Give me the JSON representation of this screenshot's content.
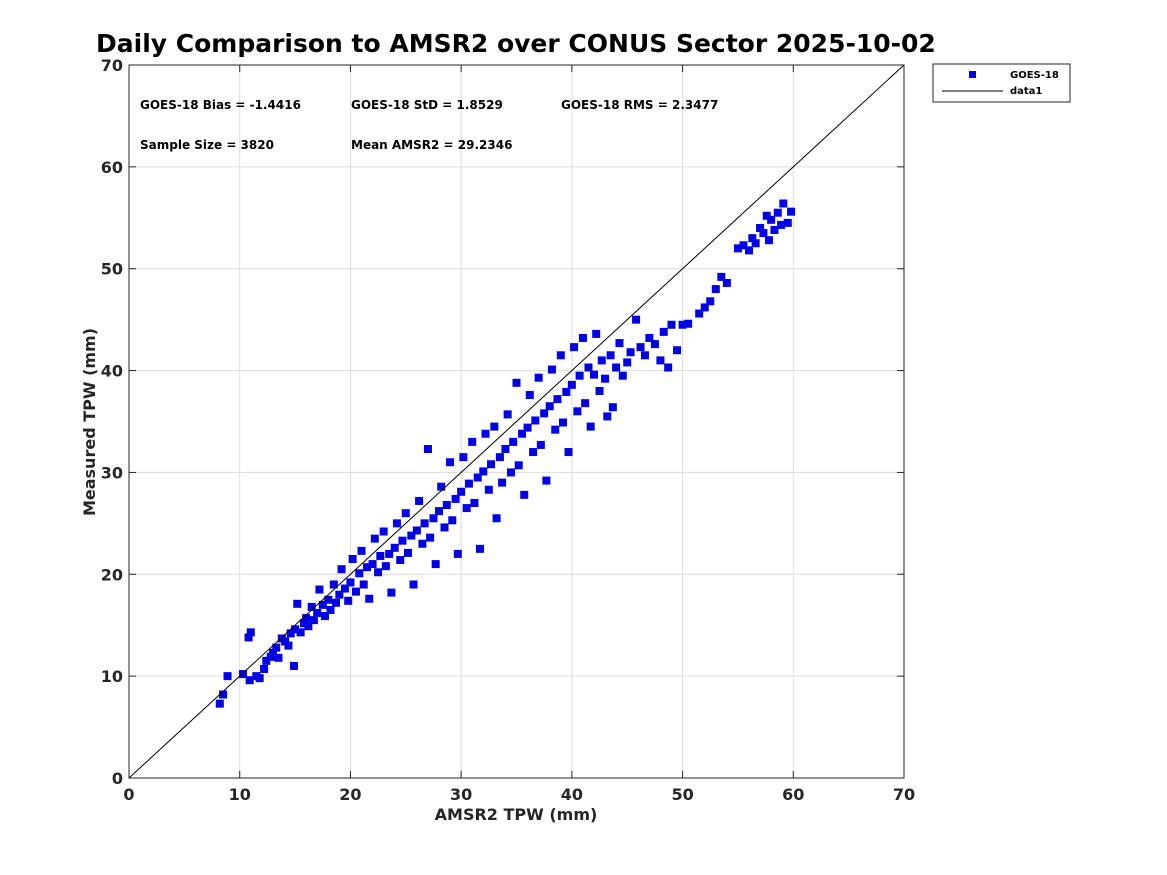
{
  "chart_data": {
    "type": "scatter",
    "title": "Daily Comparison to AMSR2 over CONUS Sector 2025-10-02",
    "xlabel": "AMSR2 TPW (mm)",
    "ylabel": "Measured TPW (mm)",
    "xlim": [
      0,
      70
    ],
    "ylim": [
      0,
      70
    ],
    "xticks": [
      "0",
      "10",
      "20",
      "30",
      "40",
      "50",
      "60",
      "70"
    ],
    "yticks": [
      "0",
      "10",
      "20",
      "30",
      "40",
      "50",
      "60",
      "70"
    ],
    "grid": true,
    "legend_position": "outside-top-right",
    "colors": {
      "series": "#0000e6",
      "reference": "#000000",
      "grid": "#dcdcdc"
    },
    "annotations": [
      "GOES-18 Bias = -1.4416",
      "GOES-18 StD = 1.8529",
      "GOES-18 RMS = 2.3477",
      "Sample Size = 3820",
      "Mean AMSR2 = 29.2346"
    ],
    "stats": {
      "bias": -1.4416,
      "std": 1.8529,
      "rms": 2.3477,
      "sample_size": 3820,
      "mean_amsr2": 29.2346
    },
    "series": [
      {
        "name": "GOES-18",
        "marker": "square",
        "points": [
          [
            8.2,
            7.3
          ],
          [
            8.5,
            8.2
          ],
          [
            8.9,
            10.0
          ],
          [
            10.3,
            10.2
          ],
          [
            10.8,
            13.8
          ],
          [
            11.0,
            14.3
          ],
          [
            10.9,
            9.6
          ],
          [
            11.5,
            10.0
          ],
          [
            11.8,
            9.8
          ],
          [
            12.2,
            10.7
          ],
          [
            12.4,
            11.5
          ],
          [
            12.8,
            11.9
          ],
          [
            13.0,
            12.3
          ],
          [
            13.3,
            12.8
          ],
          [
            13.5,
            11.8
          ],
          [
            13.8,
            13.7
          ],
          [
            14.1,
            13.4
          ],
          [
            14.4,
            13.0
          ],
          [
            14.6,
            14.2
          ],
          [
            14.9,
            11.0
          ],
          [
            15.0,
            14.6
          ],
          [
            15.2,
            17.1
          ],
          [
            15.5,
            14.3
          ],
          [
            15.8,
            15.2
          ],
          [
            16.0,
            15.7
          ],
          [
            16.2,
            14.9
          ],
          [
            16.5,
            16.8
          ],
          [
            16.7,
            15.5
          ],
          [
            17.0,
            16.2
          ],
          [
            17.2,
            18.5
          ],
          [
            17.5,
            17.0
          ],
          [
            17.7,
            15.9
          ],
          [
            18.0,
            17.5
          ],
          [
            18.2,
            16.5
          ],
          [
            18.5,
            19.0
          ],
          [
            18.7,
            17.2
          ],
          [
            19.0,
            18.0
          ],
          [
            19.2,
            20.5
          ],
          [
            19.5,
            18.6
          ],
          [
            19.8,
            17.4
          ],
          [
            20.0,
            19.2
          ],
          [
            20.2,
            21.5
          ],
          [
            20.5,
            18.3
          ],
          [
            20.8,
            20.1
          ],
          [
            21.0,
            22.3
          ],
          [
            21.2,
            19.0
          ],
          [
            21.5,
            20.7
          ],
          [
            21.7,
            17.6
          ],
          [
            22.0,
            21.0
          ],
          [
            22.2,
            23.5
          ],
          [
            22.5,
            20.2
          ],
          [
            22.7,
            21.8
          ],
          [
            23.0,
            24.2
          ],
          [
            23.2,
            20.8
          ],
          [
            23.5,
            22.0
          ],
          [
            23.7,
            18.2
          ],
          [
            24.0,
            22.6
          ],
          [
            24.2,
            25.0
          ],
          [
            24.5,
            21.4
          ],
          [
            24.7,
            23.3
          ],
          [
            25.0,
            26.0
          ],
          [
            25.2,
            22.1
          ],
          [
            25.5,
            23.8
          ],
          [
            25.7,
            19.0
          ],
          [
            26.0,
            24.3
          ],
          [
            26.2,
            27.2
          ],
          [
            26.5,
            23.0
          ],
          [
            26.7,
            25.0
          ],
          [
            27.0,
            32.3
          ],
          [
            27.2,
            23.6
          ],
          [
            27.5,
            25.5
          ],
          [
            27.7,
            21.0
          ],
          [
            28.0,
            26.2
          ],
          [
            28.2,
            28.6
          ],
          [
            28.5,
            24.6
          ],
          [
            28.7,
            26.8
          ],
          [
            29.0,
            31.0
          ],
          [
            29.2,
            25.3
          ],
          [
            29.5,
            27.4
          ],
          [
            29.7,
            22.0
          ],
          [
            30.0,
            28.1
          ],
          [
            30.2,
            31.5
          ],
          [
            30.5,
            26.5
          ],
          [
            30.7,
            28.9
          ],
          [
            31.0,
            33.0
          ],
          [
            31.2,
            27.0
          ],
          [
            31.5,
            29.5
          ],
          [
            31.7,
            22.5
          ],
          [
            32.0,
            30.1
          ],
          [
            32.2,
            33.8
          ],
          [
            32.5,
            28.3
          ],
          [
            32.7,
            30.8
          ],
          [
            33.0,
            34.5
          ],
          [
            33.2,
            25.5
          ],
          [
            33.5,
            31.5
          ],
          [
            33.7,
            29.0
          ],
          [
            34.0,
            32.3
          ],
          [
            34.2,
            35.7
          ],
          [
            34.5,
            30.0
          ],
          [
            34.7,
            33.0
          ],
          [
            35.0,
            38.8
          ],
          [
            35.2,
            30.7
          ],
          [
            35.5,
            33.8
          ],
          [
            35.7,
            27.8
          ],
          [
            36.0,
            34.4
          ],
          [
            36.2,
            37.6
          ],
          [
            36.5,
            32.0
          ],
          [
            36.7,
            35.1
          ],
          [
            37.0,
            39.3
          ],
          [
            37.2,
            32.7
          ],
          [
            37.5,
            35.8
          ],
          [
            37.7,
            29.2
          ],
          [
            38.0,
            36.5
          ],
          [
            38.2,
            40.1
          ],
          [
            38.5,
            34.2
          ],
          [
            38.7,
            37.2
          ],
          [
            39.0,
            41.5
          ],
          [
            39.2,
            34.9
          ],
          [
            39.5,
            37.9
          ],
          [
            39.7,
            32.0
          ],
          [
            40.0,
            38.6
          ],
          [
            40.2,
            42.3
          ],
          [
            40.5,
            36.0
          ],
          [
            40.7,
            39.5
          ],
          [
            41.0,
            43.2
          ],
          [
            41.2,
            36.8
          ],
          [
            41.5,
            40.3
          ],
          [
            41.7,
            34.5
          ],
          [
            42.0,
            39.6
          ],
          [
            42.2,
            43.6
          ],
          [
            42.5,
            38.0
          ],
          [
            42.7,
            41.0
          ],
          [
            43.0,
            39.2
          ],
          [
            43.2,
            35.5
          ],
          [
            43.5,
            41.5
          ],
          [
            43.7,
            36.4
          ],
          [
            44.0,
            40.3
          ],
          [
            44.3,
            42.7
          ],
          [
            44.6,
            39.5
          ],
          [
            45.0,
            40.8
          ],
          [
            45.3,
            41.8
          ],
          [
            45.8,
            45.0
          ],
          [
            46.2,
            42.3
          ],
          [
            46.6,
            41.5
          ],
          [
            47.0,
            43.2
          ],
          [
            47.5,
            42.6
          ],
          [
            48.0,
            41.0
          ],
          [
            48.3,
            43.8
          ],
          [
            48.7,
            40.3
          ],
          [
            49.0,
            44.5
          ],
          [
            49.5,
            42.0
          ],
          [
            50.0,
            44.5
          ],
          [
            50.5,
            44.6
          ],
          [
            51.5,
            45.6
          ],
          [
            52.0,
            46.2
          ],
          [
            52.5,
            46.8
          ],
          [
            53.0,
            48.0
          ],
          [
            53.5,
            49.2
          ],
          [
            54.0,
            48.6
          ],
          [
            55.0,
            52.0
          ],
          [
            55.5,
            52.3
          ],
          [
            56.0,
            51.8
          ],
          [
            56.3,
            53.0
          ],
          [
            56.6,
            52.5
          ],
          [
            57.0,
            54.0
          ],
          [
            57.3,
            53.5
          ],
          [
            57.6,
            55.2
          ],
          [
            57.8,
            52.8
          ],
          [
            58.0,
            54.8
          ],
          [
            58.3,
            53.8
          ],
          [
            58.6,
            55.5
          ],
          [
            58.9,
            54.3
          ],
          [
            59.1,
            56.4
          ],
          [
            59.5,
            54.5
          ],
          [
            59.8,
            55.6
          ]
        ]
      },
      {
        "name": "data1",
        "style": "line",
        "points": [
          [
            0,
            0
          ],
          [
            70,
            70
          ]
        ]
      }
    ]
  }
}
